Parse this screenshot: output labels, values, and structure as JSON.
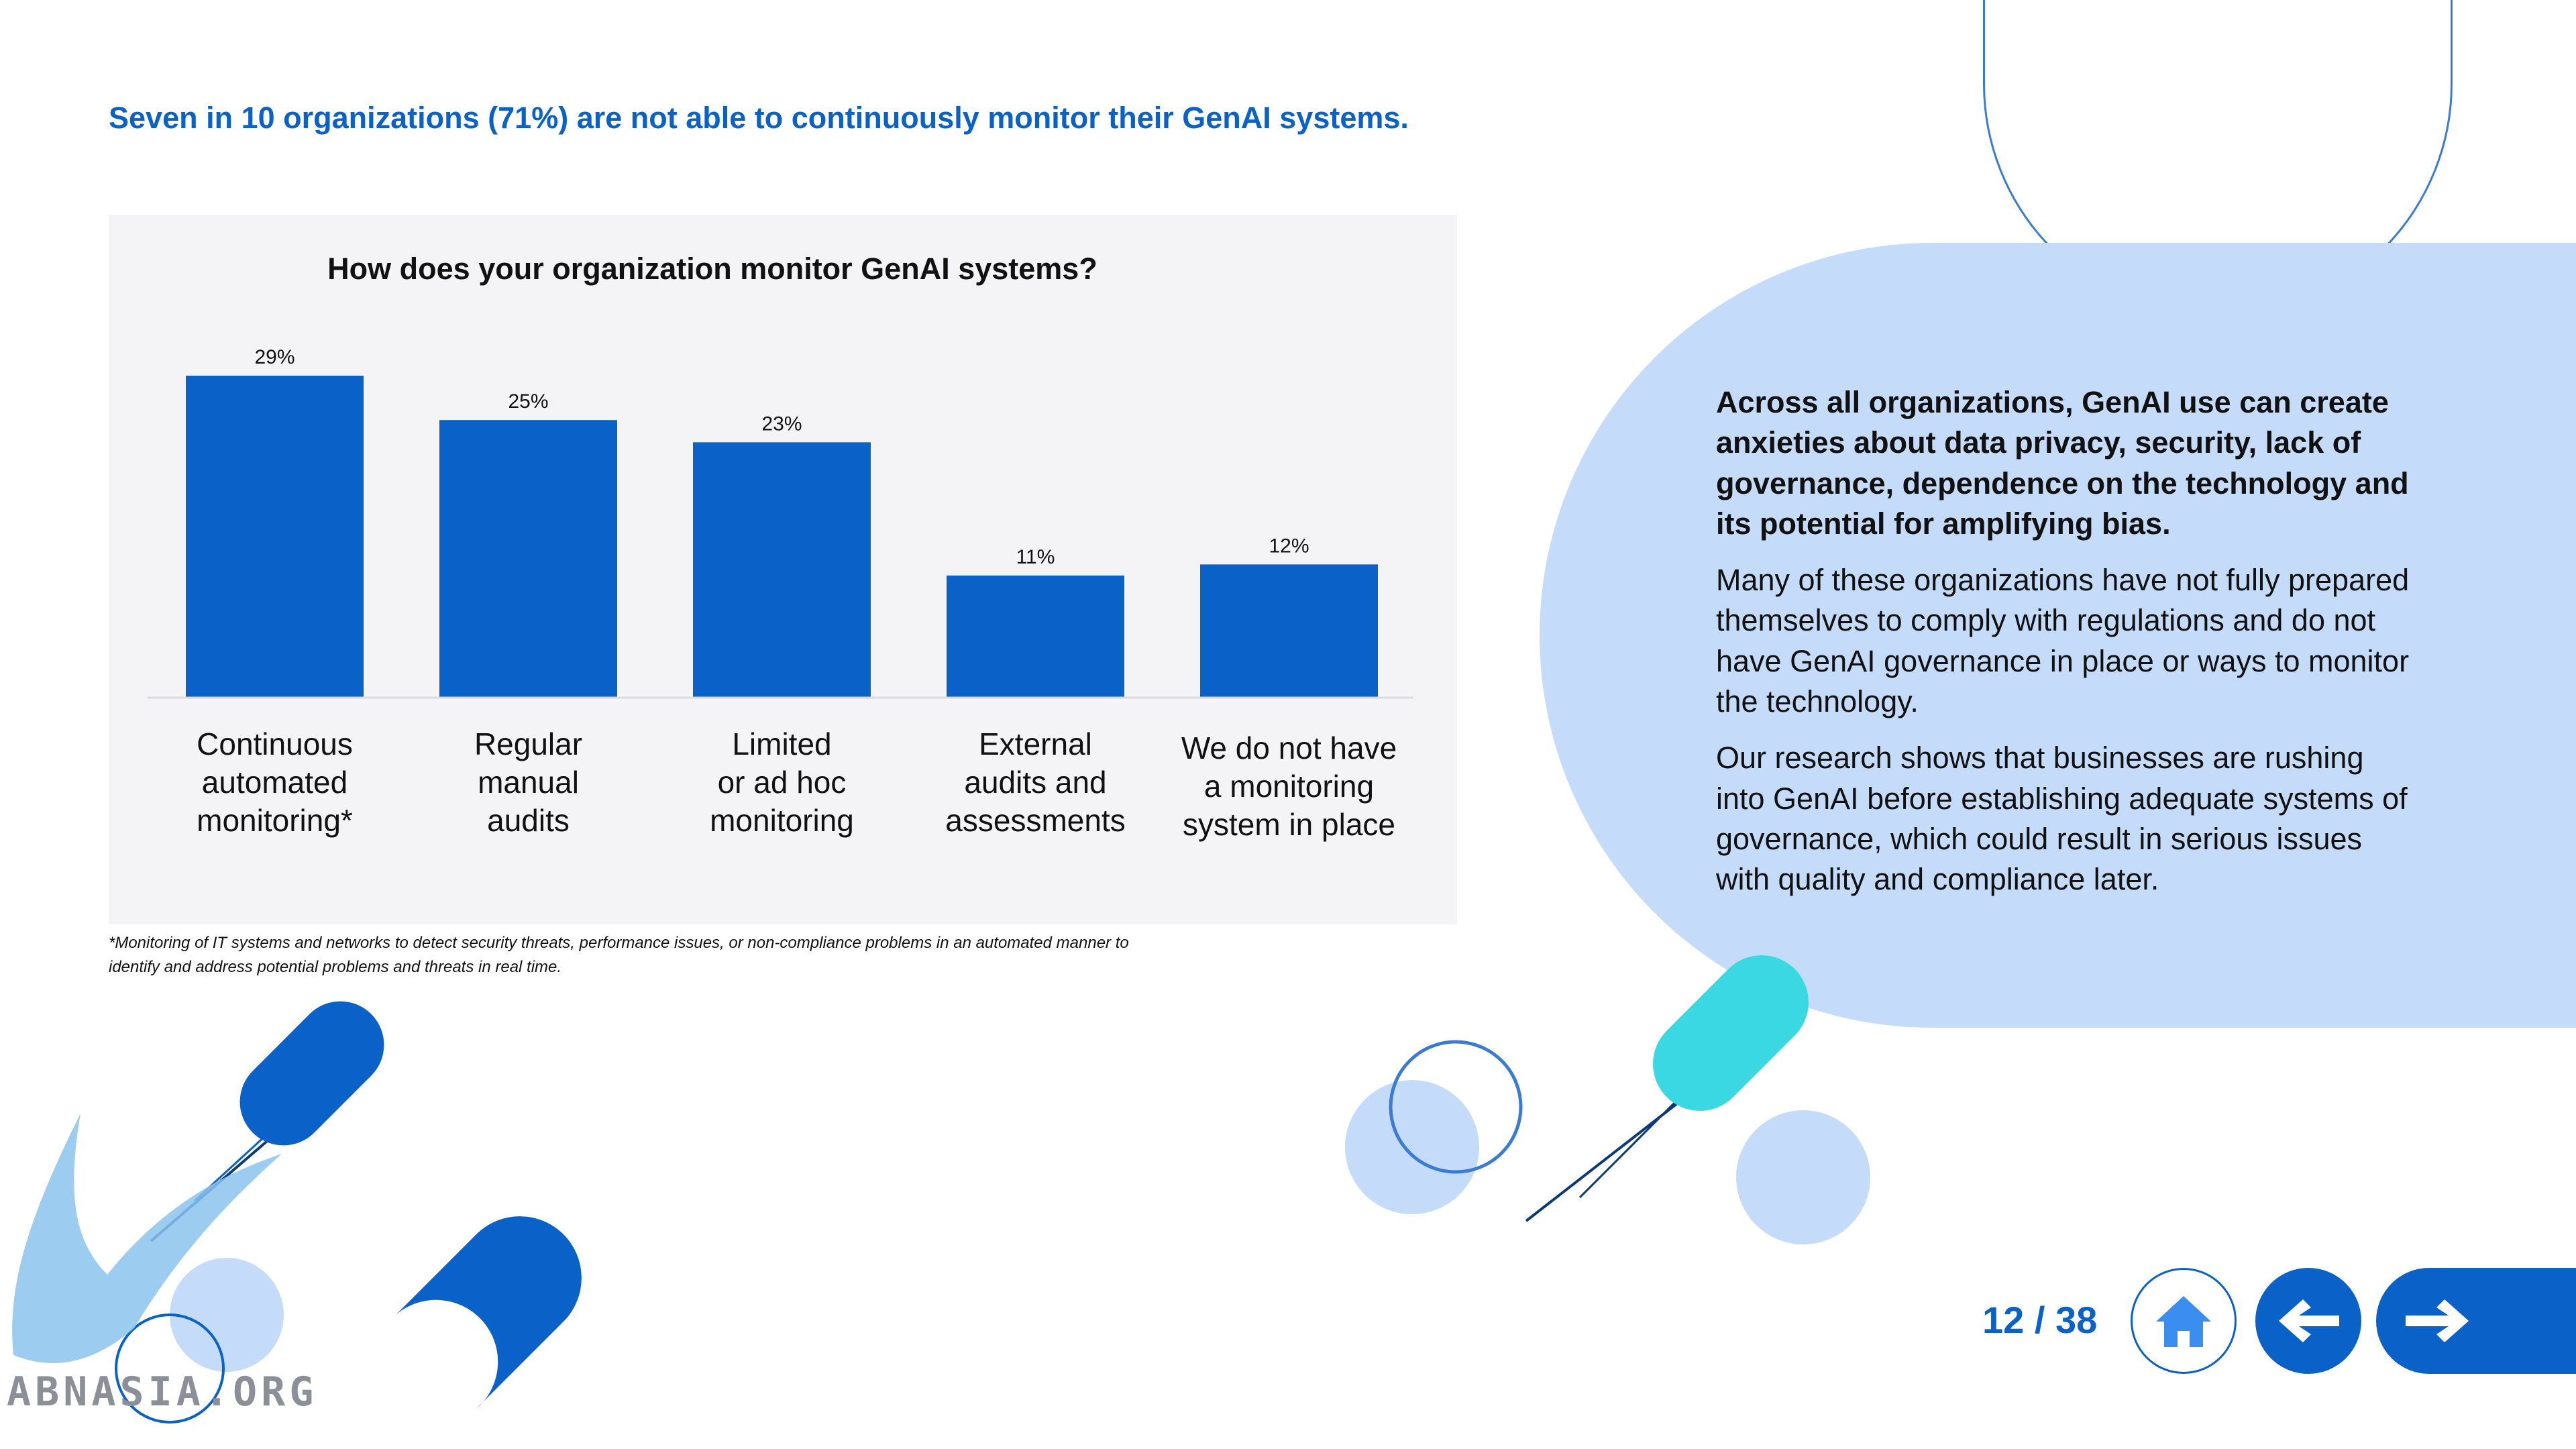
{
  "headline": "Seven in 10 organizations (71%) are not able to continuously monitor their GenAI systems.",
  "chart_data": {
    "type": "bar",
    "title": "How does your organization monitor GenAI systems?",
    "categories": [
      [
        "Continuous",
        "automated",
        "monitoring*"
      ],
      [
        "Regular",
        "manual",
        "audits"
      ],
      [
        "Limited",
        "or ad hoc",
        "monitoring"
      ],
      [
        "External",
        "audits and",
        "assessments"
      ],
      [
        "We do not have",
        "a monitoring",
        "system in place"
      ]
    ],
    "values": [
      29,
      25,
      23,
      11,
      12
    ],
    "data_labels": [
      "29%",
      "25%",
      "23%",
      "11%",
      "12%"
    ],
    "ylim": [
      0,
      32
    ],
    "bar_color": "#0a62c9",
    "grid": false
  },
  "footnote_lines": [
    "*Monitoring of IT systems and networks to detect security threats, performance issues, or non-compliance problems in an automated manner to",
    "identify and address potential problems and threats in real time."
  ],
  "side": {
    "bold_paragraph": "Across all organizations, GenAI use can create anxieties about data privacy, security, lack of governance, dependence on the technology and its potential for amplifying bias.",
    "paragraph_2": "Many of these organizations have not fully prepared themselves to comply with regulations and do not have GenAI governance in place or ways to monitor the technology.",
    "paragraph_3": "Our research shows that businesses are rushing into GenAI before establishing adequate systems of governance, which could result in serious issues with quality and compliance later."
  },
  "nav": {
    "page": "12 / 38"
  },
  "watermark": "ABNASIA.ORG",
  "colors": {
    "accent": "#0a62c9",
    "light_blue": "#c4dcfa",
    "cyan": "#3ad8e3",
    "panel": "#f4f4f6"
  }
}
